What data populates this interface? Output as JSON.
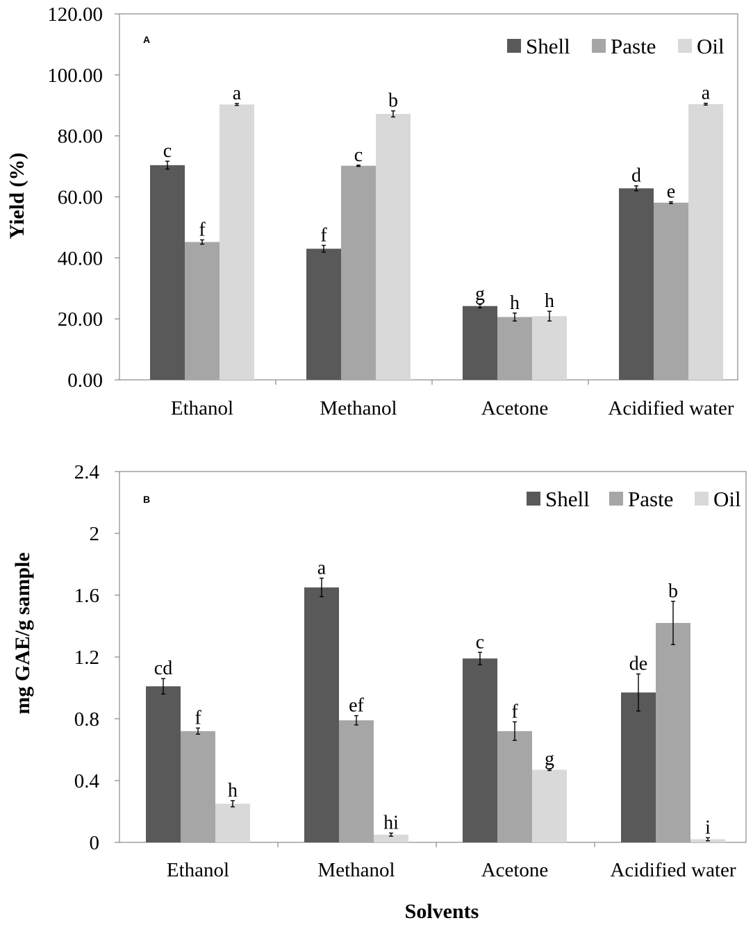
{
  "chart_data": [
    {
      "panel": "A",
      "type": "bar",
      "ylabel": "Yield (%)",
      "xlabel": "",
      "ylim": [
        0,
        120
      ],
      "yticks": [
        "0.00",
        "20.00",
        "40.00",
        "60.00",
        "80.00",
        "100.00",
        "120.00"
      ],
      "categories": [
        "Ethanol",
        "Methanol",
        "Acetone",
        "Acidified water"
      ],
      "legend": [
        "Shell",
        "Paste",
        "Oil"
      ],
      "legend_position": "top-right",
      "series": [
        {
          "name": "Shell",
          "color": "#595959",
          "values": [
            70.4,
            43.0,
            24.2,
            62.8
          ],
          "errors": [
            1.3,
            1.1,
            0.6,
            0.8
          ],
          "labels": [
            "c",
            "f",
            "g",
            "d"
          ]
        },
        {
          "name": "Paste",
          "color": "#a6a6a6",
          "values": [
            45.2,
            70.2,
            20.6,
            58.1
          ],
          "errors": [
            0.7,
            0.2,
            1.3,
            0.3
          ],
          "labels": [
            "f",
            "c",
            "h",
            "e"
          ]
        },
        {
          "name": "Oil",
          "color": "#d9d9d9",
          "values": [
            90.3,
            87.2,
            20.9,
            90.4
          ],
          "errors": [
            0.3,
            1.0,
            1.6,
            0.3
          ],
          "labels": [
            "a",
            "b",
            "h",
            "a"
          ]
        }
      ]
    },
    {
      "panel": "B",
      "type": "bar",
      "ylabel": "mg GAE/g sample",
      "xlabel": "Solvents",
      "ylim": [
        0,
        2.4
      ],
      "yticks": [
        "0",
        "0.4",
        "0.8",
        "1.2",
        "1.6",
        "2",
        "2.4"
      ],
      "categories": [
        "Ethanol",
        "Methanol",
        "Acetone",
        "Acidified water"
      ],
      "legend": [
        "Shell",
        "Paste",
        "Oil"
      ],
      "legend_position": "top-right",
      "series": [
        {
          "name": "Shell",
          "color": "#595959",
          "values": [
            1.01,
            1.65,
            1.19,
            0.97
          ],
          "errors": [
            0.05,
            0.06,
            0.04,
            0.12
          ],
          "labels": [
            "cd",
            "a",
            "c",
            "de"
          ]
        },
        {
          "name": "Paste",
          "color": "#a6a6a6",
          "values": [
            0.72,
            0.79,
            0.72,
            1.42
          ],
          "errors": [
            0.02,
            0.03,
            0.06,
            0.14
          ],
          "labels": [
            "f",
            "ef",
            "f",
            "b"
          ]
        },
        {
          "name": "Oil",
          "color": "#d9d9d9",
          "values": [
            0.25,
            0.05,
            0.47,
            0.02
          ],
          "errors": [
            0.02,
            0.01,
            0.005,
            0.01
          ],
          "labels": [
            "h",
            "hi",
            "g",
            "i"
          ]
        }
      ]
    }
  ]
}
